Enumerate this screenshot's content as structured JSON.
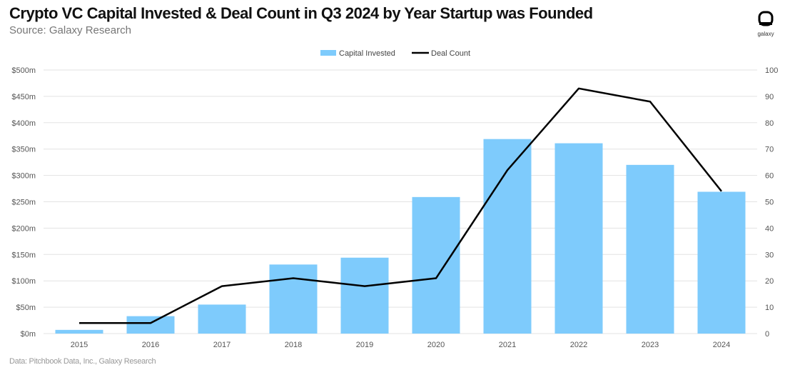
{
  "header": {
    "title": "Crypto VC Capital Invested & Deal Count in Q3 2024 by Year Startup was Founded",
    "subtitle": "Source: Galaxy Research"
  },
  "footer": {
    "note": "Data: Pitchbook Data, Inc., Galaxy Research"
  },
  "logo": {
    "text": "galaxy"
  },
  "chart_data": {
    "type": "bar",
    "categories": [
      "2015",
      "2016",
      "2017",
      "2018",
      "2019",
      "2020",
      "2021",
      "2022",
      "2023",
      "2024"
    ],
    "series": [
      {
        "name": "Capital Invested",
        "type": "bar",
        "axis": "left",
        "color": "#7ECBFC",
        "values": [
          7,
          33,
          55,
          131,
          144,
          259,
          369,
          361,
          320,
          269
        ]
      },
      {
        "name": "Deal Count",
        "type": "line",
        "axis": "right",
        "color": "#000000",
        "values": [
          4,
          4,
          18,
          21,
          18,
          21,
          62,
          93,
          88,
          54
        ]
      }
    ],
    "y_left": {
      "ylim": [
        0,
        500
      ],
      "ticks": [
        "$0m",
        "$50m",
        "$100m",
        "$150m",
        "$200m",
        "$250m",
        "$300m",
        "$350m",
        "$400m",
        "$450m",
        "$500m"
      ]
    },
    "y_right": {
      "ylim": [
        0,
        100
      ],
      "ticks": [
        "0",
        "10",
        "20",
        "30",
        "40",
        "50",
        "60",
        "70",
        "80",
        "90",
        "100"
      ]
    },
    "grid": true,
    "legend": "top-center"
  }
}
